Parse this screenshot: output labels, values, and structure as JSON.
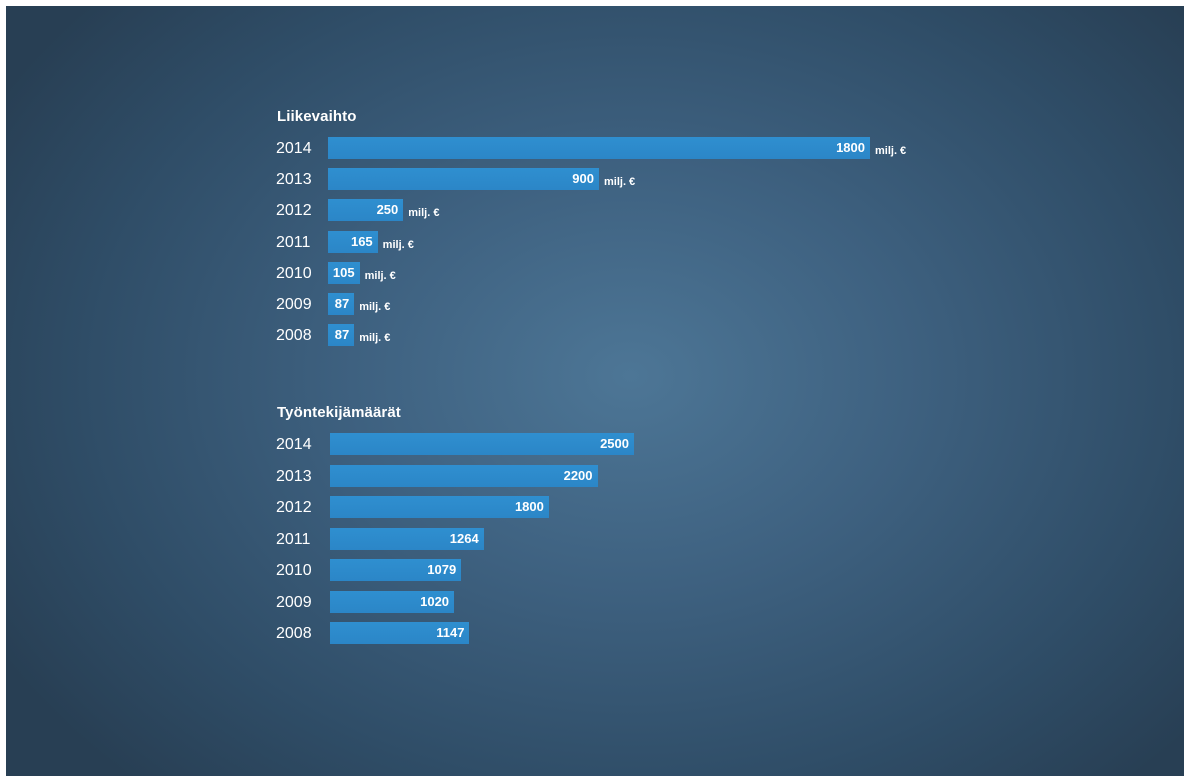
{
  "chart_data": [
    {
      "type": "bar",
      "orientation": "horizontal",
      "title": "Liikevaihto",
      "categories": [
        "2014",
        "2013",
        "2012",
        "2011",
        "2010",
        "2009",
        "2008"
      ],
      "values": [
        1800,
        900,
        250,
        165,
        105,
        87,
        87
      ],
      "value_labels": [
        "1800",
        "900",
        "250",
        "165",
        "105",
        "87",
        "87"
      ],
      "unit": "milj. €",
      "xlim": [
        0,
        1800
      ],
      "bar_color": "#2b86c7",
      "grid": false
    },
    {
      "type": "bar",
      "orientation": "horizontal",
      "title": "Työntekijämäärät",
      "categories": [
        "2014",
        "2013",
        "2012",
        "2011",
        "2010",
        "2009",
        "2008"
      ],
      "values": [
        2500,
        2200,
        1800,
        1264,
        1079,
        1020,
        1147
      ],
      "value_labels": [
        "2500",
        "2200",
        "1800",
        "1264",
        "1079",
        "1020",
        "1147"
      ],
      "xlim": [
        0,
        2500
      ],
      "bar_color": "#2b86c7",
      "grid": false
    }
  ],
  "background_color": "#3e6180"
}
